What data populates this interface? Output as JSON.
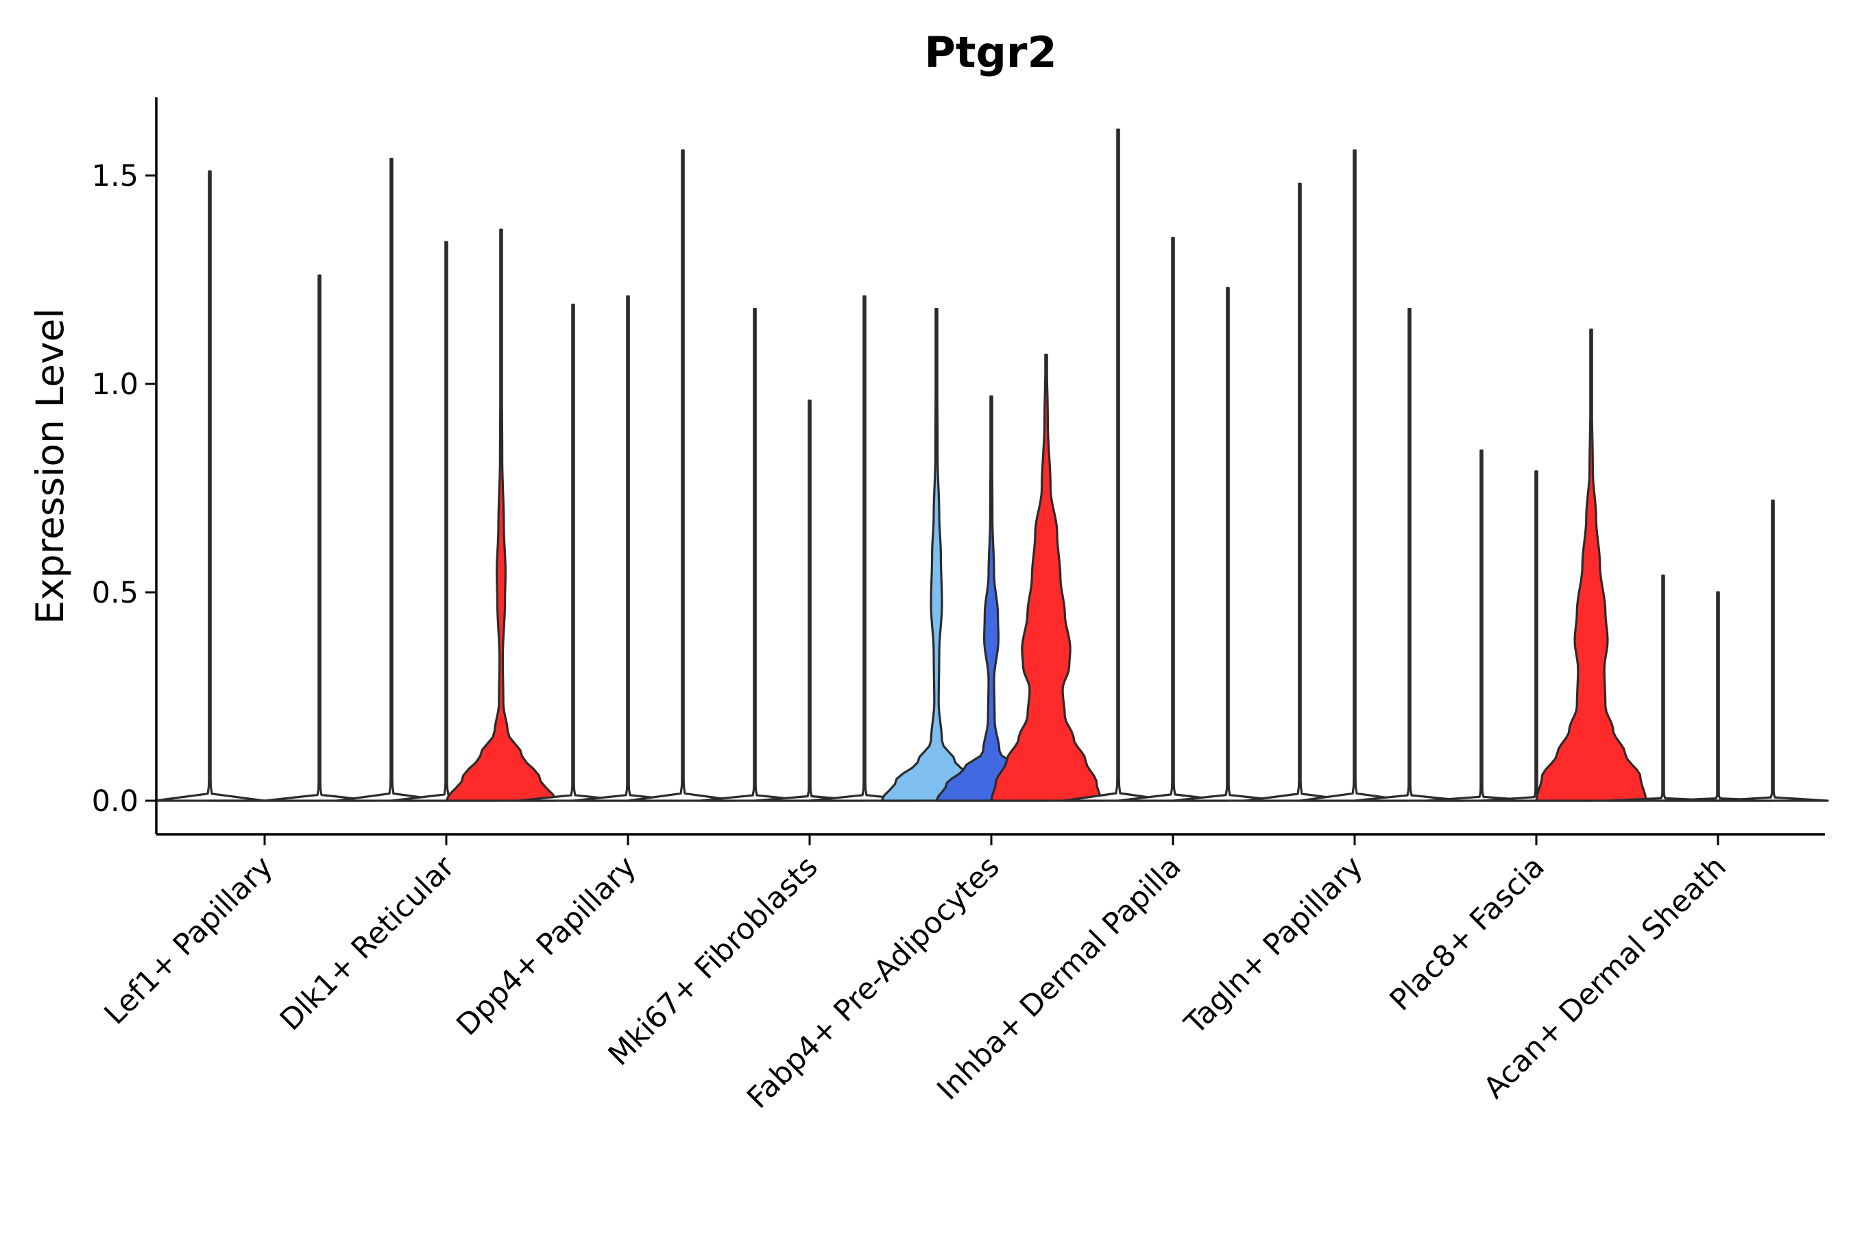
{
  "chart_data": {
    "type": "violin",
    "title": "Ptgr2",
    "xlabel": "",
    "ylabel": "Expression Level",
    "ylim": [
      -0.08,
      1.68
    ],
    "yticks": [
      "0.0",
      "0.5",
      "1.0",
      "1.5"
    ],
    "ytick_values": [
      0.0,
      0.5,
      1.0,
      1.5
    ],
    "categories": [
      "Lef1+ Papillary",
      "Dlk1+ Reticular",
      "Dpp4+ Papillary",
      "Mki67+ Fibroblasts",
      "Fabp4+ Pre-Adipocytes",
      "Inhba+ Dermal Papilla",
      "Tagln+ Papillary",
      "Plac8+ Fascia",
      "Acan+ Dermal Sheath"
    ],
    "groups_per_category": 3,
    "series_colors": [
      "#7fbfef",
      "#4169e1",
      "#ff2a2a"
    ],
    "neutral_fill": "#ffffff",
    "violins": [
      {
        "category": 0,
        "sub": 0,
        "max": 1.51,
        "shape": "flat",
        "filled": false
      },
      {
        "category": 0,
        "sub": 1,
        "max": 0.0,
        "shape": "flat",
        "filled": false
      },
      {
        "category": 0,
        "sub": 2,
        "max": 1.26,
        "shape": "flat",
        "filled": false
      },
      {
        "category": 1,
        "sub": 0,
        "max": 1.54,
        "shape": "flat",
        "filled": false
      },
      {
        "category": 1,
        "sub": 1,
        "max": 1.34,
        "shape": "flat",
        "filled": false
      },
      {
        "category": 1,
        "sub": 2,
        "max": 1.37,
        "shape": "dlk1_red",
        "filled": true
      },
      {
        "category": 2,
        "sub": 0,
        "max": 1.19,
        "shape": "flat",
        "filled": false
      },
      {
        "category": 2,
        "sub": 1,
        "max": 1.21,
        "shape": "flat",
        "filled": false
      },
      {
        "category": 2,
        "sub": 2,
        "max": 1.56,
        "shape": "flat",
        "filled": false
      },
      {
        "category": 3,
        "sub": 0,
        "max": 1.18,
        "shape": "flat",
        "filled": false
      },
      {
        "category": 3,
        "sub": 1,
        "max": 0.96,
        "shape": "flat",
        "filled": false
      },
      {
        "category": 3,
        "sub": 2,
        "max": 1.21,
        "shape": "flat",
        "filled": false
      },
      {
        "category": 4,
        "sub": 0,
        "max": 1.18,
        "shape": "fabp4_light",
        "filled": true
      },
      {
        "category": 4,
        "sub": 1,
        "max": 0.97,
        "shape": "fabp4_blue",
        "filled": true
      },
      {
        "category": 4,
        "sub": 2,
        "max": 1.07,
        "shape": "fabp4_red",
        "filled": true
      },
      {
        "category": 5,
        "sub": 0,
        "max": 1.61,
        "shape": "flat",
        "filled": false
      },
      {
        "category": 5,
        "sub": 1,
        "max": 1.35,
        "shape": "flat",
        "filled": false
      },
      {
        "category": 5,
        "sub": 2,
        "max": 1.23,
        "shape": "flat",
        "filled": false
      },
      {
        "category": 6,
        "sub": 0,
        "max": 1.48,
        "shape": "flat",
        "filled": false
      },
      {
        "category": 6,
        "sub": 1,
        "max": 1.56,
        "shape": "flat",
        "filled": false
      },
      {
        "category": 6,
        "sub": 2,
        "max": 1.18,
        "shape": "flat",
        "filled": false
      },
      {
        "category": 7,
        "sub": 0,
        "max": 0.84,
        "shape": "flat",
        "filled": false
      },
      {
        "category": 7,
        "sub": 1,
        "max": 0.79,
        "shape": "flat",
        "filled": false
      },
      {
        "category": 7,
        "sub": 2,
        "max": 1.13,
        "shape": "plac8_red",
        "filled": true
      },
      {
        "category": 8,
        "sub": 0,
        "max": 0.54,
        "shape": "flat",
        "filled": false
      },
      {
        "category": 8,
        "sub": 1,
        "max": 0.5,
        "shape": "flat",
        "filled": false
      },
      {
        "category": 8,
        "sub": 2,
        "max": 0.72,
        "shape": "flat",
        "filled": false
      }
    ],
    "density_profiles": {
      "flat": [
        [
          0.0,
          1.0
        ],
        [
          0.006,
          0.04
        ],
        [
          0.03,
          0.012
        ],
        [
          0.1,
          0.008
        ],
        [
          1.0,
          0.006
        ]
      ],
      "dlk1_red": [
        [
          0.0,
          1.0
        ],
        [
          0.04,
          0.7
        ],
        [
          0.08,
          0.38
        ],
        [
          0.12,
          0.12
        ],
        [
          0.17,
          0.04
        ],
        [
          0.25,
          0.03
        ],
        [
          0.35,
          0.07
        ],
        [
          0.4,
          0.08
        ],
        [
          0.48,
          0.05
        ],
        [
          0.6,
          0.02
        ],
        [
          0.8,
          0.008
        ],
        [
          1.0,
          0.005
        ]
      ],
      "fabp4_light": [
        [
          0.0,
          1.0
        ],
        [
          0.04,
          0.74
        ],
        [
          0.08,
          0.34
        ],
        [
          0.12,
          0.1
        ],
        [
          0.2,
          0.04
        ],
        [
          0.3,
          0.05
        ],
        [
          0.4,
          0.1
        ],
        [
          0.5,
          0.08
        ],
        [
          0.58,
          0.05
        ],
        [
          0.7,
          0.02
        ],
        [
          1.0,
          0.006
        ]
      ],
      "fabp4_blue": [
        [
          0.0,
          1.0
        ],
        [
          0.04,
          0.82
        ],
        [
          0.08,
          0.5
        ],
        [
          0.12,
          0.15
        ],
        [
          0.2,
          0.06
        ],
        [
          0.3,
          0.05
        ],
        [
          0.4,
          0.13
        ],
        [
          0.46,
          0.12
        ],
        [
          0.56,
          0.05
        ],
        [
          0.7,
          0.02
        ],
        [
          1.0,
          0.006
        ]
      ],
      "fabp4_red": [
        [
          0.0,
          1.0
        ],
        [
          0.04,
          0.92
        ],
        [
          0.09,
          0.72
        ],
        [
          0.14,
          0.5
        ],
        [
          0.19,
          0.34
        ],
        [
          0.25,
          0.3
        ],
        [
          0.3,
          0.42
        ],
        [
          0.34,
          0.44
        ],
        [
          0.42,
          0.34
        ],
        [
          0.5,
          0.26
        ],
        [
          0.6,
          0.2
        ],
        [
          0.7,
          0.08
        ],
        [
          0.85,
          0.03
        ],
        [
          1.0,
          0.01
        ]
      ],
      "plac8_red": [
        [
          0.0,
          1.0
        ],
        [
          0.05,
          0.9
        ],
        [
          0.1,
          0.62
        ],
        [
          0.15,
          0.4
        ],
        [
          0.2,
          0.26
        ],
        [
          0.28,
          0.24
        ],
        [
          0.34,
          0.3
        ],
        [
          0.4,
          0.26
        ],
        [
          0.5,
          0.16
        ],
        [
          0.6,
          0.09
        ],
        [
          0.7,
          0.03
        ],
        [
          0.85,
          0.012
        ],
        [
          1.0,
          0.006
        ]
      ]
    }
  }
}
